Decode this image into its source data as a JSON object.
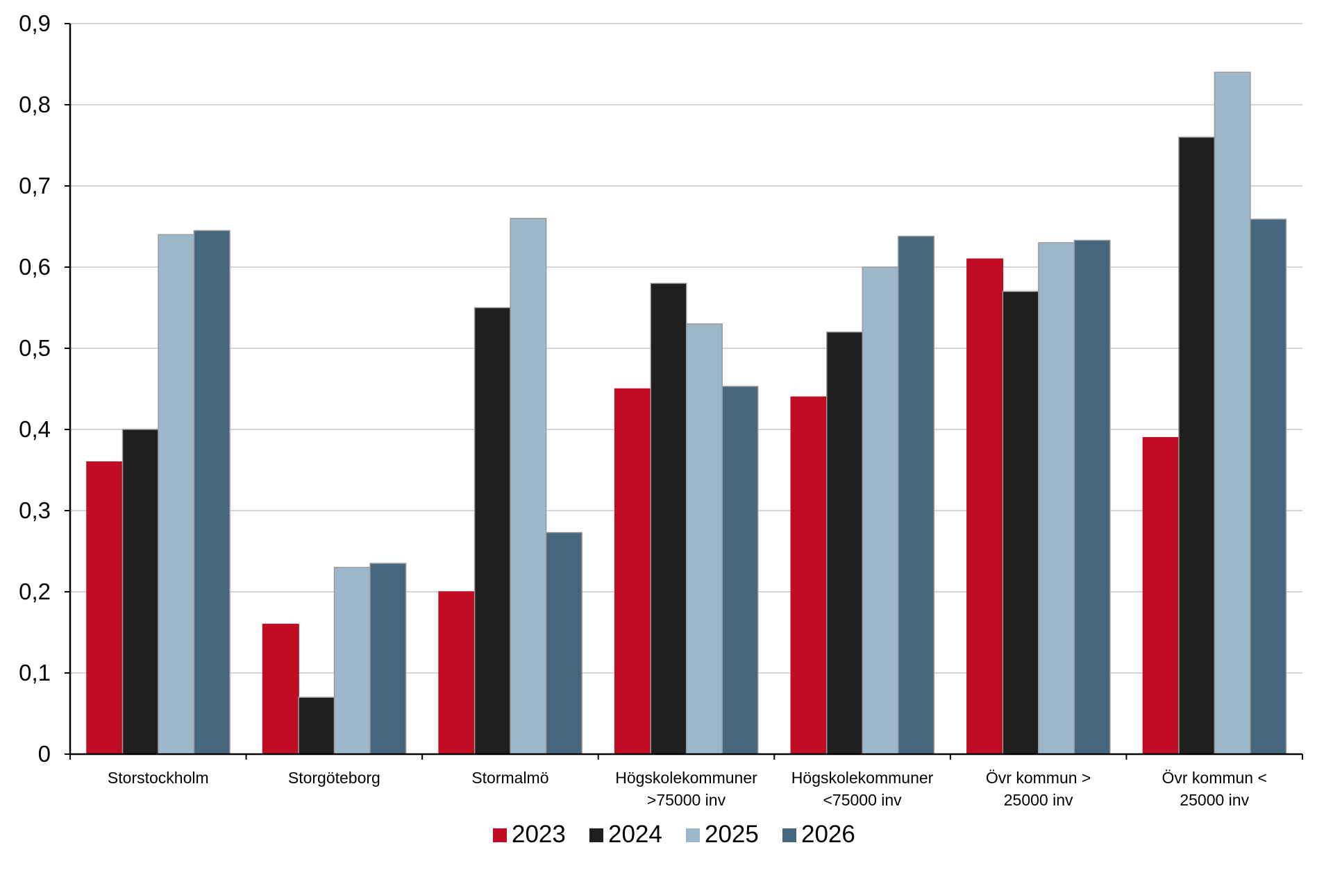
{
  "chart_data": {
    "type": "bar",
    "title": "",
    "xlabel": "",
    "ylabel": "",
    "ylim": [
      0,
      0.9
    ],
    "yticks": [
      0,
      0.1,
      0.2,
      0.3,
      0.4,
      0.5,
      0.6,
      0.7,
      0.8,
      0.9
    ],
    "ytick_labels": [
      "0",
      "0,1",
      "0,2",
      "0,3",
      "0,4",
      "0,5",
      "0,6",
      "0,7",
      "0,8",
      "0,9"
    ],
    "grid": true,
    "legend_position": "bottom",
    "categories": [
      [
        "Storstockholm"
      ],
      [
        "Storgöteborg"
      ],
      [
        "Stormalmö"
      ],
      [
        "Högskolekommuner",
        ">75000 inv"
      ],
      [
        "Högskolekommuner",
        "<75000 inv"
      ],
      [
        "Övr kommun >",
        "25000 inv"
      ],
      [
        "Övr kommun <",
        "25000 inv"
      ]
    ],
    "series": [
      {
        "name": "2023",
        "color": "#c00d24",
        "values": [
          0.36,
          0.16,
          0.2,
          0.45,
          0.44,
          0.61,
          0.39
        ]
      },
      {
        "name": "2024",
        "color": "#1f1f1f",
        "values": [
          0.4,
          0.07,
          0.55,
          0.58,
          0.52,
          0.57,
          0.76
        ]
      },
      {
        "name": "2025",
        "color": "#9db8cb",
        "values": [
          0.64,
          0.23,
          0.66,
          0.53,
          0.6,
          0.63,
          0.84
        ]
      },
      {
        "name": "2026",
        "color": "#46667d",
        "values": [
          0.645,
          0.235,
          0.273,
          0.453,
          0.638,
          0.633,
          0.659
        ]
      }
    ]
  }
}
